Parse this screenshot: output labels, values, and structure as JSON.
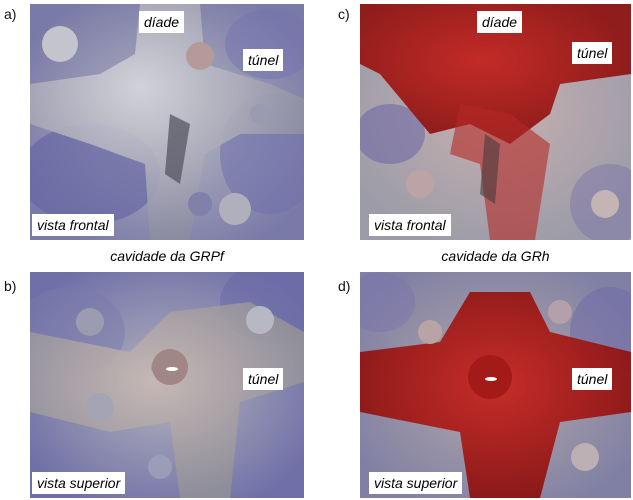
{
  "panels": {
    "a": {
      "letter": "a)",
      "labels": {
        "top": "díade",
        "right": "túnel",
        "bottom": "vista frontal"
      },
      "colors": {
        "base": "#a8a8b4",
        "tint": "#6a6aa8",
        "accent": "#c0a8a4"
      }
    },
    "b": {
      "letter": "b)",
      "labels": {
        "right": "túnel",
        "bottom": "vista superior"
      },
      "colors": {
        "base": "#a4a4ac",
        "tint": "#6e6eac",
        "accent": "#b89a9a"
      }
    },
    "c": {
      "letter": "c)",
      "labels": {
        "top": "díade",
        "right": "túnel",
        "bottom": "vista frontal"
      },
      "colors": {
        "base": "#c8b4b4",
        "tint": "#b41e1a",
        "accent": "#7a6aa0"
      }
    },
    "d": {
      "letter": "d)",
      "labels": {
        "right": "túnel",
        "bottom": "vista superior"
      },
      "colors": {
        "base": "#b0a8a8",
        "tint": "#b4201c",
        "accent": "#7c70a4"
      }
    }
  },
  "captions": {
    "left": "cavidade da GRPf",
    "right": "cavidade da GRh"
  }
}
